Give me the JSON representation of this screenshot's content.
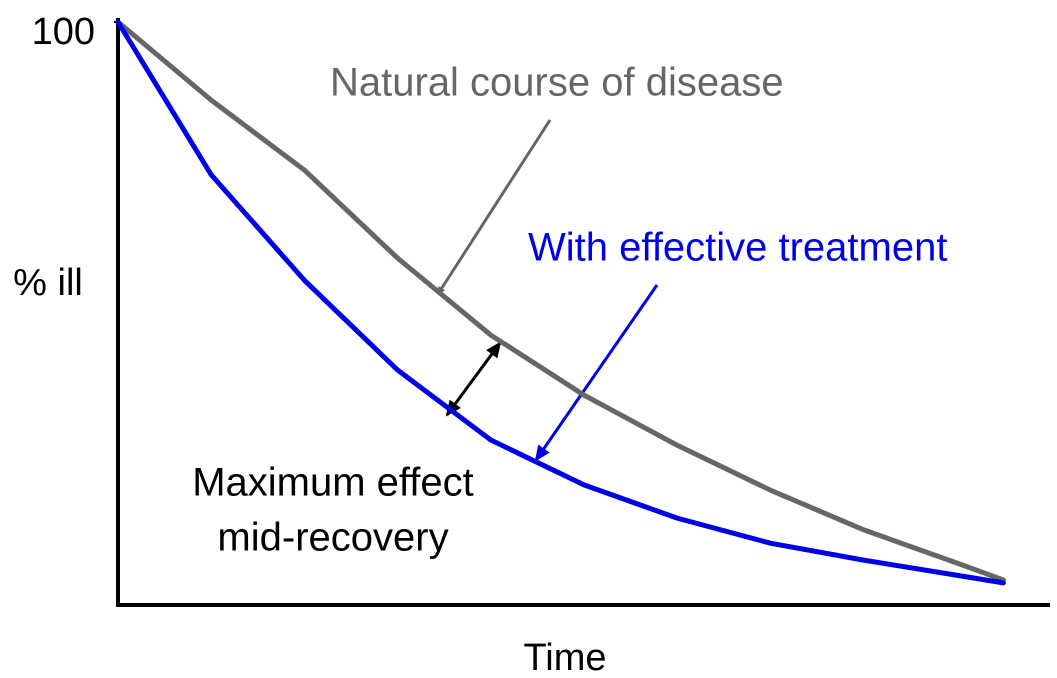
{
  "chart_data": {
    "type": "line",
    "x_label": "Time",
    "y_label": "% ill",
    "xlim": [
      0,
      100
    ],
    "ylim": [
      0,
      100
    ],
    "yticks": [
      100
    ],
    "x": [
      0,
      10,
      20,
      30,
      40,
      50,
      60,
      70,
      80,
      90,
      95
    ],
    "series": [
      {
        "color": "#666666",
        "values": [
          100,
          86.6,
          74.6,
          59.5,
          46.3,
          36.0,
          27.4,
          19.7,
          12.9,
          7.2,
          4.3
        ]
      },
      {
        "color": "#0000e6",
        "values": [
          100,
          73.8,
          55.7,
          40.3,
          28.3,
          20.6,
          14.9,
          10.6,
          7.7,
          5.1,
          3.8
        ]
      }
    ],
    "annotations": [
      "Natural course of disease",
      "With effective treatment",
      "Maximum effect",
      "mid-recovery"
    ]
  }
}
